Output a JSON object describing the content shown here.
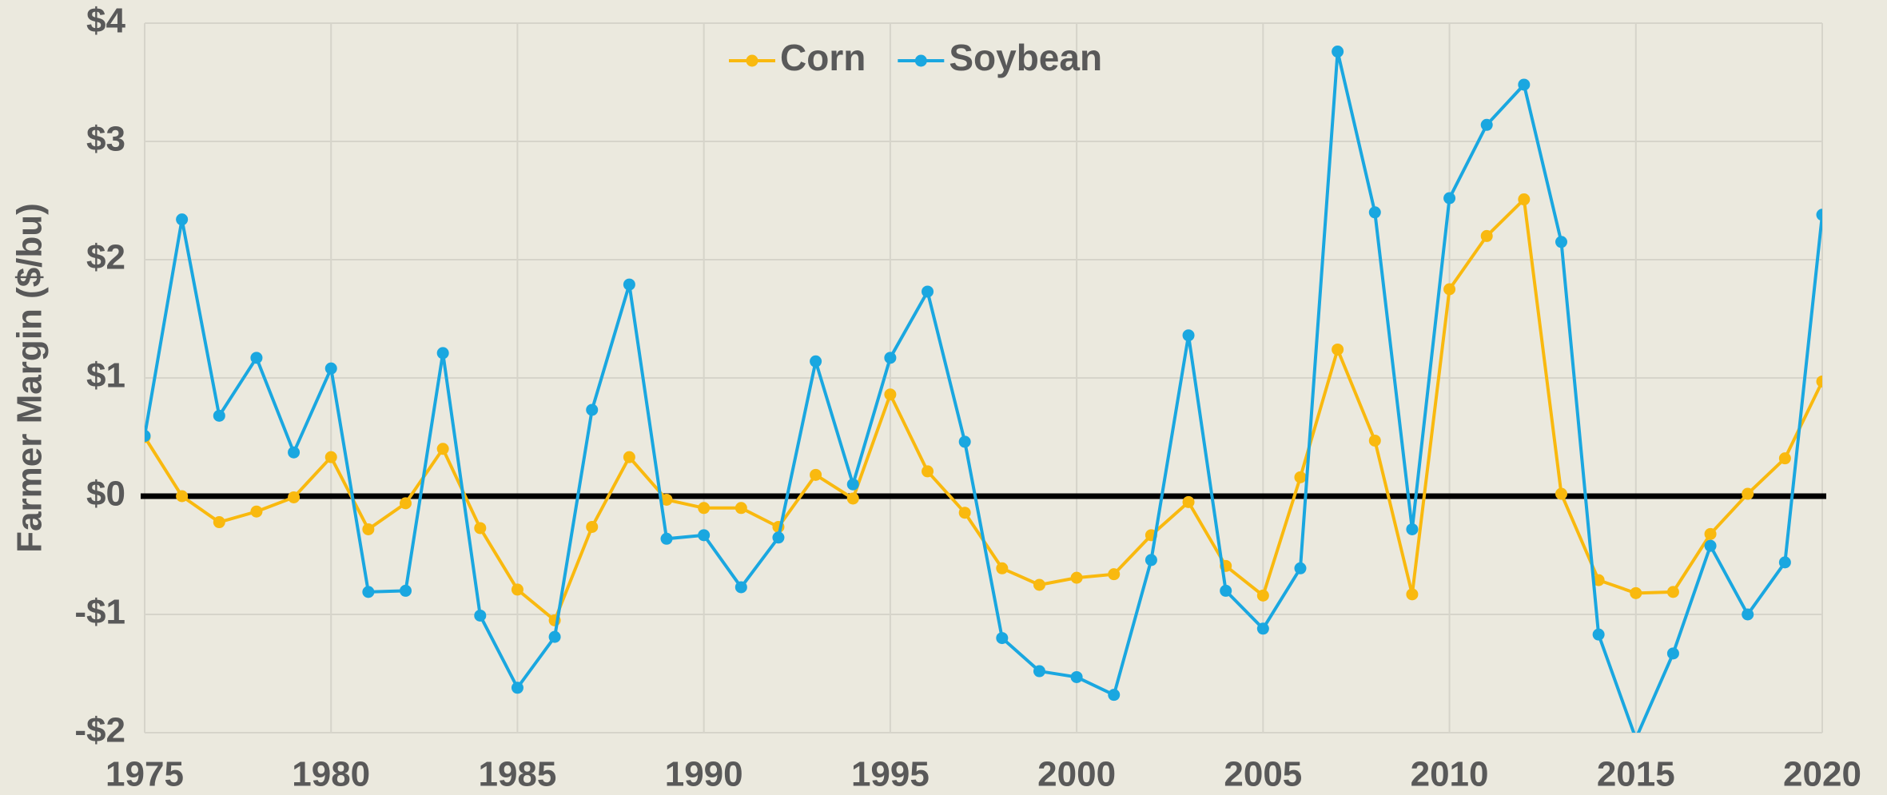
{
  "chart_data": {
    "type": "line",
    "y_label": "Farmer Margin ($/bu)",
    "x": [
      1975,
      1976,
      1977,
      1978,
      1979,
      1980,
      1981,
      1982,
      1983,
      1984,
      1985,
      1986,
      1987,
      1988,
      1989,
      1990,
      1991,
      1992,
      1993,
      1994,
      1995,
      1996,
      1997,
      1998,
      1999,
      2000,
      2001,
      2002,
      2003,
      2004,
      2005,
      2006,
      2007,
      2008,
      2009,
      2010,
      2011,
      2012,
      2013,
      2014,
      2015,
      2016,
      2017,
      2018,
      2019,
      2020
    ],
    "series": [
      {
        "name": "Corn",
        "color": "#f9b90f",
        "values": [
          0.5,
          0.0,
          -0.22,
          -0.13,
          -0.01,
          0.33,
          -0.28,
          -0.06,
          0.4,
          -0.27,
          -0.79,
          -1.05,
          -0.26,
          0.33,
          -0.03,
          -0.1,
          -0.1,
          -0.26,
          0.18,
          -0.02,
          0.86,
          0.21,
          -0.14,
          -0.61,
          -0.75,
          -0.69,
          -0.66,
          -0.33,
          -0.05,
          -0.59,
          -0.84,
          0.16,
          1.24,
          0.47,
          -0.83,
          1.75,
          2.2,
          2.51,
          0.02,
          -0.71,
          -0.82,
          -0.81,
          -0.32,
          0.02,
          0.32,
          0.97
        ]
      },
      {
        "name": "Soybean",
        "color": "#1aa7e0",
        "values": [
          0.51,
          2.34,
          0.68,
          1.17,
          0.37,
          1.08,
          -0.81,
          -0.8,
          1.21,
          -1.01,
          -1.62,
          -1.19,
          0.73,
          1.79,
          -0.36,
          -0.33,
          -0.77,
          -0.35,
          1.14,
          0.1,
          1.17,
          1.73,
          0.46,
          -1.2,
          -1.48,
          -1.53,
          -1.68,
          -0.54,
          1.36,
          -0.8,
          -1.12,
          -0.61,
          3.76,
          2.4,
          -0.28,
          2.52,
          3.14,
          3.48,
          2.15,
          -1.17,
          -2.05,
          -1.33,
          -0.42,
          -1.0,
          -0.56,
          2.38
        ]
      }
    ],
    "xlim": [
      1975,
      2020
    ],
    "xticks": [
      1975,
      1980,
      1985,
      1990,
      1995,
      2000,
      2005,
      2010,
      2015,
      2020
    ],
    "ylim": [
      -2,
      4
    ],
    "yticks": [
      {
        "value": -2,
        "label": "-$2"
      },
      {
        "value": -1,
        "label": "-$1"
      },
      {
        "value": 0,
        "label": "$0"
      },
      {
        "value": 1,
        "label": "$1"
      },
      {
        "value": 2,
        "label": "$2"
      },
      {
        "value": 3,
        "label": "$3"
      },
      {
        "value": 4,
        "label": "$4"
      }
    ],
    "grid": true,
    "legend": "top"
  }
}
